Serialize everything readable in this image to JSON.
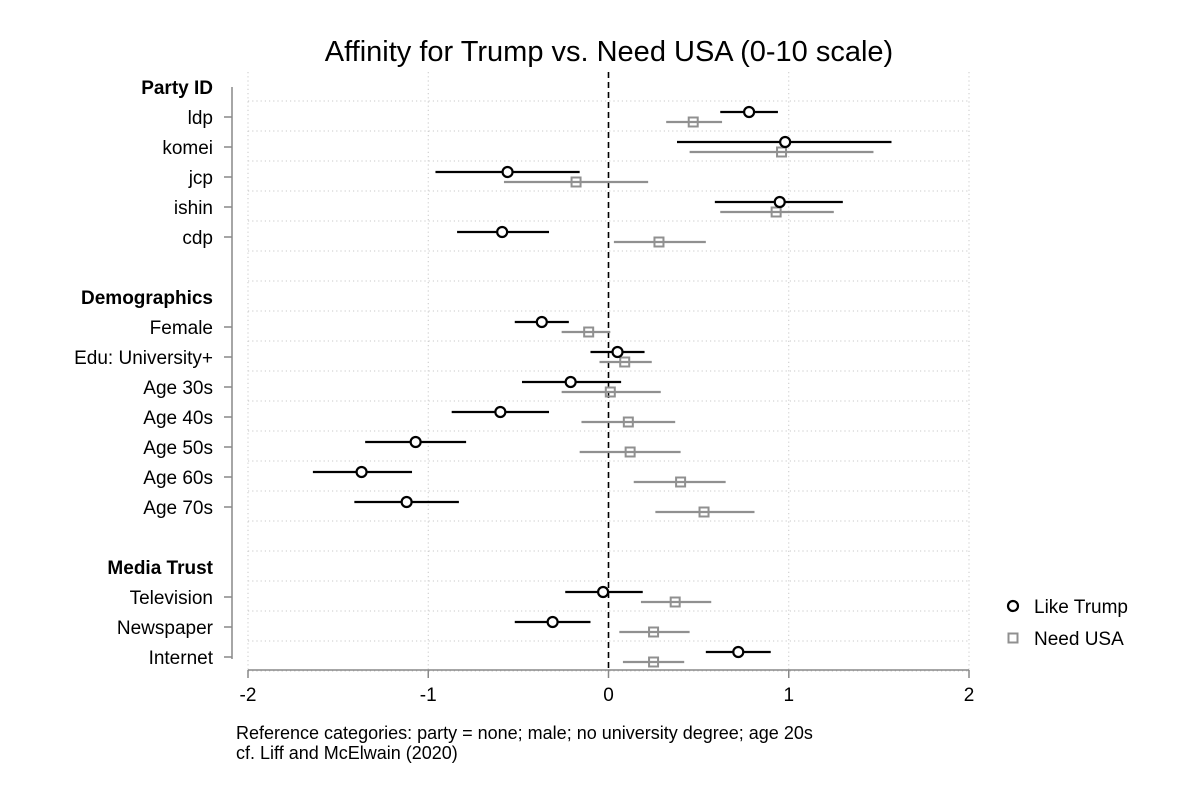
{
  "chart_data": {
    "type": "scatter",
    "title": "Affinity for Trump vs. Need USA (0-10 scale)",
    "xlabel": "",
    "ylabel": "",
    "xlim": [
      -2,
      2
    ],
    "xticks": [
      -2,
      -1,
      0,
      1,
      2
    ],
    "xtick_labels": [
      "-2",
      "-1",
      "0",
      "1",
      "2"
    ],
    "reference_line_x": 0,
    "grid": true,
    "legend_position": "right",
    "series": [
      {
        "name": "Like Trump",
        "marker": "circle",
        "color": "#000000"
      },
      {
        "name": "Need USA",
        "marker": "square",
        "color": "#909090"
      }
    ],
    "groups": [
      {
        "label": "Party ID",
        "rows": [
          {
            "label": "ldp",
            "trump": [
              0.78,
              0.62,
              0.94
            ],
            "usa": [
              0.47,
              0.32,
              0.63
            ]
          },
          {
            "label": "komei",
            "trump": [
              0.98,
              0.38,
              1.57
            ],
            "usa": [
              0.96,
              0.45,
              1.47
            ]
          },
          {
            "label": "jcp",
            "trump": [
              -0.56,
              -0.96,
              -0.16
            ],
            "usa": [
              -0.18,
              -0.58,
              0.22
            ]
          },
          {
            "label": "ishin",
            "trump": [
              0.95,
              0.59,
              1.3
            ],
            "usa": [
              0.93,
              0.62,
              1.25
            ]
          },
          {
            "label": "cdp",
            "trump": [
              -0.59,
              -0.84,
              -0.33
            ],
            "usa": [
              0.28,
              0.03,
              0.54
            ]
          }
        ]
      },
      {
        "label": "Demographics",
        "rows": [
          {
            "label": "Female",
            "trump": [
              -0.37,
              -0.52,
              -0.22
            ],
            "usa": [
              -0.11,
              -0.26,
              0.01
            ]
          },
          {
            "label": "Edu: University+",
            "trump": [
              0.05,
              -0.1,
              0.2
            ],
            "usa": [
              0.09,
              -0.05,
              0.24
            ]
          },
          {
            "label": "Age 30s",
            "trump": [
              -0.21,
              -0.48,
              0.07
            ],
            "usa": [
              0.01,
              -0.26,
              0.29
            ]
          },
          {
            "label": "Age 40s",
            "trump": [
              -0.6,
              -0.87,
              -0.33
            ],
            "usa": [
              0.11,
              -0.15,
              0.37
            ]
          },
          {
            "label": "Age 50s",
            "trump": [
              -1.07,
              -1.35,
              -0.79
            ],
            "usa": [
              0.12,
              -0.16,
              0.4
            ]
          },
          {
            "label": "Age 60s",
            "trump": [
              -1.37,
              -1.64,
              -1.09
            ],
            "usa": [
              0.4,
              0.14,
              0.65
            ]
          },
          {
            "label": "Age 70s",
            "trump": [
              -1.12,
              -1.41,
              -0.83
            ],
            "usa": [
              0.53,
              0.26,
              0.81
            ]
          }
        ]
      },
      {
        "label": "Media Trust",
        "rows": [
          {
            "label": "Television",
            "trump": [
              -0.03,
              -0.24,
              0.19
            ],
            "usa": [
              0.37,
              0.18,
              0.57
            ]
          },
          {
            "label": "Newspaper",
            "trump": [
              -0.31,
              -0.52,
              -0.1
            ],
            "usa": [
              0.25,
              0.06,
              0.45
            ]
          },
          {
            "label": "Internet",
            "trump": [
              0.72,
              0.54,
              0.9
            ],
            "usa": [
              0.25,
              0.08,
              0.42
            ]
          }
        ]
      }
    ],
    "notes": [
      "Reference categories: party = none; male; no university degree; age 20s",
      "cf. Liff and McElwain (2020)"
    ]
  }
}
